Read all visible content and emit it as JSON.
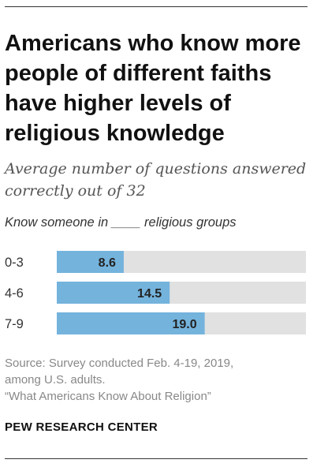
{
  "header": {
    "title": "Americans who know more people of different faiths have higher levels of religious knowledge",
    "subtitle": "Average number of questions answered correctly out of 32"
  },
  "chart_label": "Know someone in ____ religious groups",
  "chart_data": {
    "type": "bar",
    "orientation": "horizontal",
    "categories": [
      "0-3",
      "4-6",
      "7-9"
    ],
    "values": [
      8.6,
      14.5,
      19.0
    ],
    "value_labels": [
      "8.6",
      "14.5",
      "19.0"
    ],
    "xlim": [
      0,
      32
    ],
    "bar_color": "#74b3dc",
    "track_color": "#e1e1e1",
    "label_color": "#222222"
  },
  "footer": {
    "source_line1": "Source: Survey conducted Feb. 4-19, 2019,",
    "source_line2": "among U.S. adults.",
    "source_line3": "“What Americans Know About Religion”",
    "brand": "PEW RESEARCH CENTER"
  }
}
